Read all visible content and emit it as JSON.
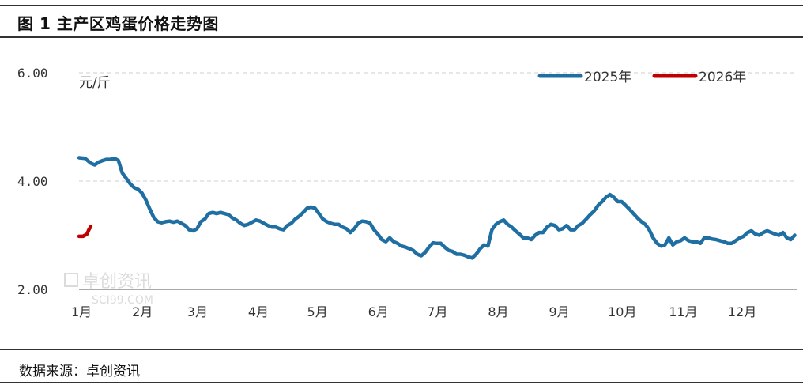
{
  "title": "图 1  主产区鸡蛋价格走势图",
  "source": "数据来源：卓创资讯",
  "watermark": {
    "cn": "卓创资讯",
    "en": "SCI99.COM"
  },
  "chart_data": {
    "type": "line",
    "unit_label": "元/斤",
    "ylim": [
      2.0,
      6.0
    ],
    "yticks": [
      "6.00",
      "4.00",
      "2.00"
    ],
    "ytick_values": [
      6.0,
      4.0,
      2.0
    ],
    "xlim": [
      0,
      365
    ],
    "month_labels": [
      "1月",
      "2月",
      "3月",
      "4月",
      "5月",
      "6月",
      "7月",
      "8月",
      "9月",
      "10月",
      "11月",
      "12月"
    ],
    "month_positions": [
      0,
      31,
      59,
      90,
      120,
      151,
      181,
      212,
      243,
      273,
      304,
      334
    ],
    "grid": "horizontal dashed",
    "legend_position": "top-right",
    "series": [
      {
        "name": "2025年",
        "color": "#1f6fa3",
        "x": [
          0,
          3,
          6,
          8,
          10,
          12,
          14,
          16,
          18,
          20,
          22,
          24,
          26,
          28,
          30,
          32,
          34,
          36,
          38,
          40,
          42,
          44,
          46,
          48,
          50,
          52,
          54,
          56,
          58,
          60,
          62,
          64,
          66,
          68,
          70,
          72,
          74,
          76,
          78,
          80,
          82,
          84,
          86,
          88,
          90,
          92,
          94,
          96,
          98,
          100,
          102,
          104,
          106,
          108,
          110,
          112,
          114,
          116,
          118,
          120,
          122,
          124,
          126,
          128,
          130,
          132,
          134,
          136,
          138,
          140,
          142,
          144,
          146,
          148,
          150,
          152,
          154,
          156,
          158,
          160,
          162,
          164,
          166,
          168,
          170,
          172,
          174,
          176,
          178,
          180,
          182,
          184,
          186,
          188,
          190,
          192,
          194,
          196,
          198,
          200,
          202,
          204,
          206,
          208,
          210,
          212,
          214,
          216,
          218,
          220,
          222,
          224,
          226,
          228,
          230,
          232,
          234,
          236,
          238,
          240,
          242,
          244,
          246,
          248,
          250,
          252,
          254,
          256,
          258,
          260,
          262,
          264,
          266,
          268,
          270,
          272,
          274,
          276,
          278,
          280,
          282,
          284,
          286,
          288,
          290,
          292,
          294,
          296,
          298,
          300,
          302,
          304,
          306,
          308,
          310,
          312,
          314,
          316,
          318,
          320,
          322,
          324,
          326,
          328,
          330,
          332,
          334,
          336,
          338,
          340,
          342,
          344,
          346,
          348,
          350,
          352,
          354,
          356,
          358,
          360,
          362,
          364
        ],
        "values": [
          4.43,
          4.42,
          4.33,
          4.3,
          4.35,
          4.38,
          4.4,
          4.4,
          4.42,
          4.38,
          4.15,
          4.05,
          3.95,
          3.88,
          3.85,
          3.78,
          3.65,
          3.48,
          3.33,
          3.25,
          3.23,
          3.25,
          3.26,
          3.24,
          3.26,
          3.22,
          3.18,
          3.1,
          3.08,
          3.12,
          3.25,
          3.3,
          3.4,
          3.42,
          3.4,
          3.42,
          3.4,
          3.38,
          3.32,
          3.28,
          3.22,
          3.18,
          3.2,
          3.24,
          3.28,
          3.26,
          3.22,
          3.18,
          3.15,
          3.15,
          3.12,
          3.1,
          3.18,
          3.22,
          3.3,
          3.35,
          3.42,
          3.5,
          3.52,
          3.5,
          3.4,
          3.3,
          3.25,
          3.22,
          3.2,
          3.2,
          3.15,
          3.12,
          3.05,
          3.12,
          3.22,
          3.26,
          3.25,
          3.22,
          3.1,
          3.02,
          2.92,
          2.88,
          2.95,
          2.88,
          2.85,
          2.8,
          2.78,
          2.75,
          2.72,
          2.65,
          2.62,
          2.68,
          2.78,
          2.86,
          2.85,
          2.85,
          2.78,
          2.72,
          2.7,
          2.65,
          2.65,
          2.63,
          2.6,
          2.58,
          2.65,
          2.75,
          2.82,
          2.8,
          3.1,
          3.2,
          3.25,
          3.28,
          3.2,
          3.15,
          3.08,
          3.02,
          2.95,
          2.95,
          2.92,
          3.0,
          3.05,
          3.05,
          3.15,
          3.2,
          3.18,
          3.1,
          3.12,
          3.18,
          3.1,
          3.1,
          3.18,
          3.22,
          3.3,
          3.38,
          3.45,
          3.55,
          3.62,
          3.7,
          3.75,
          3.7,
          3.62,
          3.62,
          3.55,
          3.48,
          3.4,
          3.32,
          3.25,
          3.2,
          3.1,
          2.95,
          2.85,
          2.8,
          2.82,
          2.95,
          2.82,
          2.88,
          2.9,
          2.95,
          2.9,
          2.88,
          2.88,
          2.85,
          2.95,
          2.95,
          2.93,
          2.92,
          2.9,
          2.88,
          2.85,
          2.85,
          2.9,
          2.95,
          2.98,
          3.05,
          3.08,
          3.02,
          3.0,
          3.05,
          3.08,
          3.05,
          3.02,
          3.0,
          3.05,
          2.95,
          2.92,
          3.0
        ]
      },
      {
        "name": "2026年",
        "color": "#c00000",
        "x": [
          0,
          2,
          4,
          5,
          6
        ],
        "values": [
          2.98,
          2.98,
          3.02,
          3.1,
          3.16
        ]
      }
    ]
  }
}
